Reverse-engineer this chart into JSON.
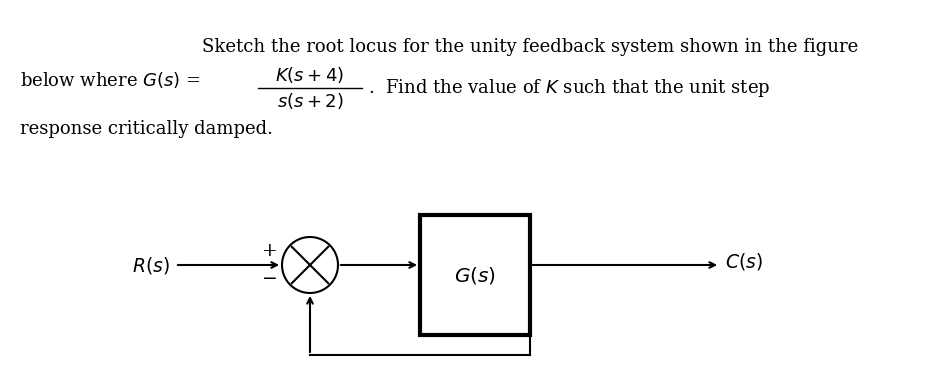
{
  "background_color": "#ffffff",
  "font_size_text": 13.0,
  "font_size_diagram": 13.5,
  "label_Rs": "$R(s)$",
  "label_plus": "+",
  "label_minus": "−",
  "label_Gs": "$G(s)$",
  "label_Cs": "$C(s)$"
}
